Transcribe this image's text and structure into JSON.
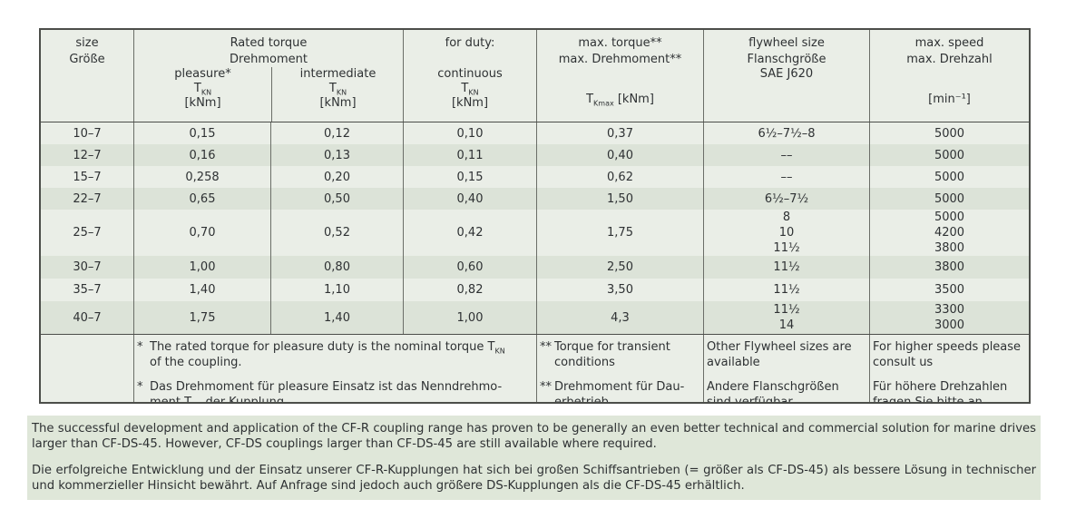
{
  "colors": {
    "row_light": "#eaeee7",
    "row_dark": "#dce3d8",
    "paragraph_bg": "#dfe7d9",
    "border": "#4c4e4a",
    "grid_line": "#6b6e68",
    "text": "#2e3133"
  },
  "table": {
    "header": {
      "size_en": "size",
      "size_de": "Größe",
      "rated_en": "Rated torque",
      "rated_de": "Drehmoment",
      "pleasure_label": "pleasure*",
      "intermediate_label": "intermediate",
      "duty_label": "for duty:",
      "continuous_label": "continuous",
      "t_base": "T",
      "t_sub": "KN",
      "unit_knm": "[kNm]",
      "maxtq_en": "max. torque**",
      "maxtq_de": "max. Drehmoment**",
      "tkmax_base": "T",
      "tkmax_sub": "Kmax",
      "tkmax_unit": "[kNm]",
      "fly_en": "flywheel size",
      "fly_de": "Flanschgröße",
      "fly_std": "SAE J620",
      "speed_en": "max. speed",
      "speed_de": "max. Drehzahl",
      "speed_unit": "[min⁻¹]"
    },
    "rows": [
      {
        "size": "10–7",
        "pleasure": "0,15",
        "intermediate": "0,12",
        "continuous": "0,10",
        "max_torque": "0,37",
        "flywheel": "6½–7½–8",
        "speed": "5000"
      },
      {
        "size": "12–7",
        "pleasure": "0,16",
        "intermediate": "0,13",
        "continuous": "0,11",
        "max_torque": "0,40",
        "flywheel": "––",
        "speed": "5000"
      },
      {
        "size": "15–7",
        "pleasure": "0,258",
        "intermediate": "0,20",
        "continuous": "0,15",
        "max_torque": "0,62",
        "flywheel": "––",
        "speed": "5000"
      },
      {
        "size": "22–7",
        "pleasure": "0,65",
        "intermediate": "0,50",
        "continuous": "0,40",
        "max_torque": "1,50",
        "flywheel": "6½–7½",
        "speed": "5000"
      },
      {
        "size": "25–7",
        "pleasure": "0,70",
        "intermediate": "0,52",
        "continuous": "0,42",
        "max_torque": "1,75",
        "flywheel": "8\n10\n11½",
        "speed": "5000\n4200\n3800"
      },
      {
        "size": "30–7",
        "pleasure": "1,00",
        "intermediate": "0,80",
        "continuous": "0,60",
        "max_torque": "2,50",
        "flywheel": "11½",
        "speed": "3800"
      },
      {
        "size": "35–7",
        "pleasure": "1,40",
        "intermediate": "1,10",
        "continuous": "0,82",
        "max_torque": "3,50",
        "flywheel": "11½",
        "speed": "3500"
      },
      {
        "size": "40–7",
        "pleasure": "1,75",
        "intermediate": "1,40",
        "continuous": "1,00",
        "max_torque": "4,3",
        "flywheel": "11½\n14",
        "speed": "3300\n3000"
      }
    ],
    "footnotes": {
      "left": {
        "en": {
          "marker": "*",
          "pre": "The rated torque for pleasure duty is the nominal torque T",
          "sub": "KN",
          "post": "\nof the coupling."
        },
        "de": {
          "marker": "*",
          "pre": "Das Drehmoment für pleasure Einsatz ist das Nenndrehmo-\nment T",
          "sub": "KN",
          "post": " der Kupplung."
        }
      },
      "maxtq": {
        "en": {
          "marker": "**",
          "text": "Torque for transient\nconditions"
        },
        "de": {
          "marker": "**",
          "text": "Drehmoment für Dau-\nerbetrieb"
        }
      },
      "fly": {
        "en": "Other Flywheel sizes are\navailable",
        "de": "Andere Flanschgrößen\nsind verfügbar"
      },
      "speed": {
        "en": "For higher speeds please\nconsult us",
        "de": "Für höhere Drehzahlen\nfragen Sie bitte an"
      }
    }
  },
  "paragraphs": {
    "en": "The successful development and application of the CF-R coupling range has proven to be generally an even better technical and commercial solution for marine drives larger than CF-DS-45. However, CF-DS couplings larger than CF-DS-45 are still available where required.",
    "de": "Die erfolgreiche Entwicklung und der Einsatz unserer CF-R-Kupplungen hat sich bei großen Schiffsantrieben (= größer als CF-DS-45) als bessere Lösung in technischer und kommerzieller Hinsicht bewährt. Auf Anfrage sind jedoch auch größere DS-Kupplungen als die CF-DS-45 erhältlich."
  }
}
